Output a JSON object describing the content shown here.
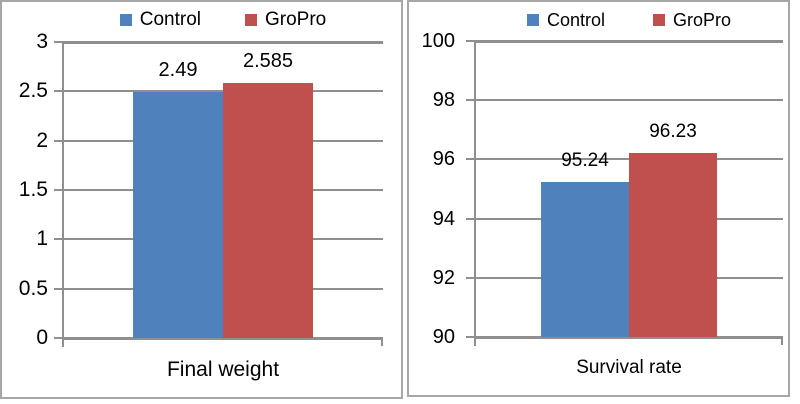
{
  "figure": {
    "description": "Two side-by-side Excel-style bar charts comparing Control vs GroPro",
    "grid_color": "#8f8f8f",
    "panel_border_color": "#a6a6a6",
    "background_color": "#ffffff",
    "text_color": "#000000"
  },
  "legend": {
    "control_label": "Control",
    "gropro_label": "GroPro",
    "control_color": "#4f81bd",
    "gropro_color": "#c0504d"
  },
  "chart_data": [
    {
      "type": "bar",
      "title": "",
      "categories": [
        "Final weight"
      ],
      "series": [
        {
          "name": "Control",
          "color": "#4f81bd",
          "values": [
            2.49
          ],
          "data_labels": [
            "2.49"
          ]
        },
        {
          "name": "GroPro",
          "color": "#c0504d",
          "values": [
            2.585
          ],
          "data_labels": [
            "2.585"
          ]
        }
      ],
      "xlabel": "Final weight",
      "ylabel": "",
      "ylim": [
        0,
        3
      ],
      "ytick_interval": 0.5,
      "ytick_labels": [
        "3",
        "2.5",
        "2",
        "1.5",
        "1",
        "0.5",
        "0"
      ],
      "grid": true,
      "legend_position": "top"
    },
    {
      "type": "bar",
      "title": "",
      "categories": [
        "Survival rate"
      ],
      "series": [
        {
          "name": "Control",
          "color": "#4f81bd",
          "values": [
            95.24
          ],
          "data_labels": [
            "95.24"
          ]
        },
        {
          "name": "GroPro",
          "color": "#c0504d",
          "values": [
            96.23
          ],
          "data_labels": [
            "96.23"
          ]
        }
      ],
      "xlabel": "Survival rate",
      "ylabel": "",
      "ylim": [
        90,
        100
      ],
      "ytick_interval": 2,
      "ytick_labels": [
        "100",
        "98",
        "96",
        "94",
        "92",
        "90"
      ],
      "grid": true,
      "legend_position": "top"
    }
  ]
}
